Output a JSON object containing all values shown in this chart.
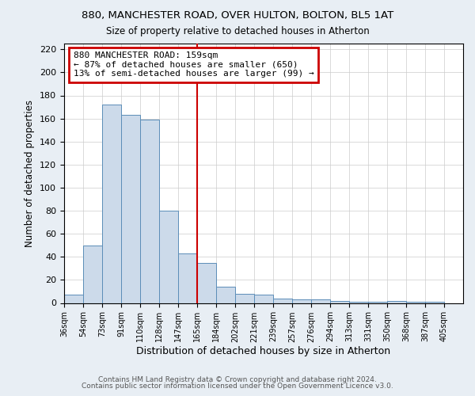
{
  "title1": "880, MANCHESTER ROAD, OVER HULTON, BOLTON, BL5 1AT",
  "title2": "Size of property relative to detached houses in Atherton",
  "xlabel": "Distribution of detached houses by size in Atherton",
  "ylabel": "Number of detached properties",
  "bin_labels": [
    "36sqm",
    "54sqm",
    "73sqm",
    "91sqm",
    "110sqm",
    "128sqm",
    "147sqm",
    "165sqm",
    "184sqm",
    "202sqm",
    "221sqm",
    "239sqm",
    "257sqm",
    "276sqm",
    "294sqm",
    "313sqm",
    "331sqm",
    "350sqm",
    "368sqm",
    "387sqm",
    "405sqm"
  ],
  "bar_heights": [
    7,
    50,
    172,
    163,
    159,
    80,
    43,
    35,
    14,
    8,
    7,
    4,
    3,
    3,
    2,
    1,
    1,
    2,
    1,
    1,
    0
  ],
  "bar_color": "#ccdaea",
  "bar_edge_color": "#5b8db8",
  "vline_x_index": 7,
  "vline_color": "#cc0000",
  "annotation_text": "880 MANCHESTER ROAD: 159sqm\n← 87% of detached houses are smaller (650)\n13% of semi-detached houses are larger (99) →",
  "annotation_box_color": "#ffffff",
  "annotation_box_edge": "#cc0000",
  "ylim": [
    0,
    225
  ],
  "yticks": [
    0,
    20,
    40,
    60,
    80,
    100,
    120,
    140,
    160,
    180,
    200,
    220
  ],
  "footer1": "Contains HM Land Registry data © Crown copyright and database right 2024.",
  "footer2": "Contains public sector information licensed under the Open Government Licence v3.0.",
  "bg_color": "#e8eef4",
  "plot_bg_color": "#ffffff",
  "grid_color": "#cccccc"
}
